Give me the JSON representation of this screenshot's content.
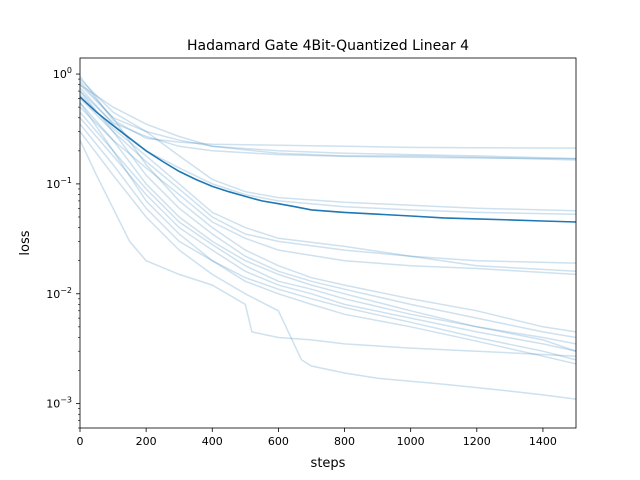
{
  "chart_data": {
    "type": "line",
    "title": "Hadamard Gate 4Bit-Quantized Linear 4",
    "xlabel": "steps",
    "ylabel": "loss",
    "xlim": [
      0,
      1500
    ],
    "ylim": [
      0.0006,
      1.4
    ],
    "yscale": "log",
    "x_ticks": [
      0,
      200,
      400,
      600,
      800,
      1000,
      1200,
      1400
    ],
    "y_ticks": [
      {
        "value": 1,
        "label": "10^0"
      },
      {
        "value": 0.1,
        "label": "10^-1"
      },
      {
        "value": 0.01,
        "label": "10^-2"
      },
      {
        "value": 0.001,
        "label": "10^-3"
      }
    ],
    "grid": false,
    "legend": "none",
    "colors": {
      "mean": "#1f77b4",
      "runs": "#1f77b4",
      "run_opacity": 0.22
    },
    "mean_series": {
      "x": [
        0,
        50,
        100,
        150,
        200,
        250,
        300,
        350,
        400,
        450,
        500,
        550,
        600,
        650,
        700,
        800,
        900,
        1000,
        1100,
        1200,
        1300,
        1400,
        1500
      ],
      "values": [
        0.62,
        0.45,
        0.34,
        0.26,
        0.2,
        0.16,
        0.13,
        0.11,
        0.095,
        0.085,
        0.077,
        0.07,
        0.066,
        0.062,
        0.058,
        0.055,
        0.053,
        0.051,
        0.049,
        0.048,
        0.047,
        0.046,
        0.045
      ]
    },
    "runs": [
      {
        "x": [
          0,
          100,
          200,
          300,
          400,
          600,
          800,
          1000,
          1200,
          1500
        ],
        "values": [
          0.95,
          0.38,
          0.26,
          0.24,
          0.23,
          0.225,
          0.22,
          0.215,
          0.213,
          0.212
        ]
      },
      {
        "x": [
          0,
          100,
          200,
          300,
          400,
          600,
          800,
          1000,
          1200,
          1500
        ],
        "values": [
          0.85,
          0.4,
          0.3,
          0.25,
          0.22,
          0.2,
          0.19,
          0.185,
          0.18,
          0.17
        ]
      },
      {
        "x": [
          0,
          100,
          200,
          300,
          400,
          600,
          800,
          1000,
          1200,
          1500
        ],
        "values": [
          0.8,
          0.5,
          0.35,
          0.27,
          0.22,
          0.19,
          0.18,
          0.18,
          0.175,
          0.165
        ]
      },
      {
        "x": [
          0,
          100,
          200,
          300,
          400,
          600,
          800,
          1000,
          1200,
          1500
        ],
        "values": [
          0.7,
          0.36,
          0.27,
          0.22,
          0.2,
          0.185,
          0.178,
          0.175,
          0.172,
          0.17
        ]
      },
      {
        "x": [
          0,
          100,
          200,
          300,
          400,
          500,
          600,
          800,
          1000,
          1200,
          1500
        ],
        "values": [
          0.9,
          0.45,
          0.3,
          0.18,
          0.11,
          0.085,
          0.075,
          0.068,
          0.064,
          0.06,
          0.057
        ]
      },
      {
        "x": [
          0,
          100,
          200,
          300,
          400,
          500,
          600,
          800,
          1000,
          1200,
          1500
        ],
        "values": [
          0.75,
          0.35,
          0.2,
          0.14,
          0.1,
          0.08,
          0.07,
          0.062,
          0.058,
          0.055,
          0.053
        ]
      },
      {
        "x": [
          0,
          100,
          200,
          300,
          400,
          500,
          600,
          800,
          1000,
          1200,
          1500
        ],
        "values": [
          0.6,
          0.3,
          0.16,
          0.09,
          0.05,
          0.035,
          0.03,
          0.025,
          0.022,
          0.02,
          0.019
        ]
      },
      {
        "x": [
          0,
          100,
          200,
          300,
          400,
          500,
          600,
          800,
          1000,
          1200,
          1500
        ],
        "values": [
          0.65,
          0.32,
          0.18,
          0.1,
          0.055,
          0.04,
          0.032,
          0.027,
          0.022,
          0.018,
          0.016
        ]
      },
      {
        "x": [
          0,
          100,
          200,
          300,
          400,
          500,
          600,
          800,
          1000,
          1200,
          1500
        ],
        "values": [
          0.55,
          0.25,
          0.14,
          0.08,
          0.045,
          0.032,
          0.025,
          0.02,
          0.018,
          0.017,
          0.015
        ]
      },
      {
        "x": [
          0,
          100,
          200,
          300,
          400,
          500,
          600,
          700,
          800,
          1000,
          1200,
          1400,
          1500
        ],
        "values": [
          0.8,
          0.4,
          0.15,
          0.07,
          0.04,
          0.025,
          0.018,
          0.014,
          0.012,
          0.009,
          0.007,
          0.005,
          0.0045
        ]
      },
      {
        "x": [
          0,
          100,
          200,
          300,
          400,
          500,
          600,
          700,
          800,
          1000,
          1200,
          1400,
          1500
        ],
        "values": [
          0.7,
          0.3,
          0.12,
          0.06,
          0.035,
          0.022,
          0.016,
          0.013,
          0.011,
          0.008,
          0.006,
          0.0045,
          0.004
        ]
      },
      {
        "x": [
          0,
          100,
          200,
          300,
          400,
          500,
          600,
          700,
          800,
          1000,
          1200,
          1400,
          1500
        ],
        "values": [
          0.5,
          0.25,
          0.1,
          0.05,
          0.03,
          0.02,
          0.015,
          0.012,
          0.01,
          0.007,
          0.005,
          0.004,
          0.0035
        ]
      },
      {
        "x": [
          0,
          100,
          200,
          300,
          400,
          500,
          600,
          700,
          800,
          1000,
          1200,
          1400,
          1500
        ],
        "values": [
          0.45,
          0.2,
          0.09,
          0.045,
          0.028,
          0.018,
          0.013,
          0.011,
          0.009,
          0.0065,
          0.005,
          0.0038,
          0.003
        ]
      },
      {
        "x": [
          0,
          100,
          200,
          300,
          400,
          500,
          600,
          700,
          800,
          1000,
          1200,
          1400,
          1500
        ],
        "values": [
          0.4,
          0.18,
          0.08,
          0.04,
          0.025,
          0.016,
          0.012,
          0.01,
          0.008,
          0.006,
          0.0045,
          0.0035,
          0.003
        ]
      },
      {
        "x": [
          0,
          100,
          200,
          300,
          400,
          500,
          600,
          700,
          800,
          1000,
          1200,
          1400,
          1500
        ],
        "values": [
          0.55,
          0.2,
          0.07,
          0.035,
          0.02,
          0.014,
          0.011,
          0.009,
          0.0075,
          0.0055,
          0.004,
          0.003,
          0.0025
        ]
      },
      {
        "x": [
          0,
          100,
          200,
          300,
          400,
          500,
          600,
          700,
          800,
          1000,
          1200,
          1400,
          1500
        ],
        "values": [
          0.35,
          0.15,
          0.06,
          0.03,
          0.02,
          0.013,
          0.01,
          0.008,
          0.0065,
          0.005,
          0.0037,
          0.0027,
          0.0023
        ]
      },
      {
        "x": [
          0,
          50,
          100,
          150,
          200,
          300,
          400,
          500,
          520,
          600,
          700,
          800,
          1000,
          1200,
          1400,
          1500
        ],
        "values": [
          0.25,
          0.12,
          0.06,
          0.03,
          0.02,
          0.015,
          0.012,
          0.008,
          0.0045,
          0.004,
          0.0038,
          0.0035,
          0.0032,
          0.003,
          0.0028,
          0.0027
        ]
      },
      {
        "x": [
          0,
          100,
          200,
          300,
          400,
          500,
          600,
          670,
          700,
          800,
          900,
          1000,
          1100,
          1200,
          1300,
          1400,
          1500
        ],
        "values": [
          0.3,
          0.12,
          0.05,
          0.025,
          0.015,
          0.01,
          0.007,
          0.0025,
          0.0022,
          0.0019,
          0.0017,
          0.0016,
          0.0015,
          0.0014,
          0.0013,
          0.0012,
          0.0011
        ]
      }
    ]
  }
}
